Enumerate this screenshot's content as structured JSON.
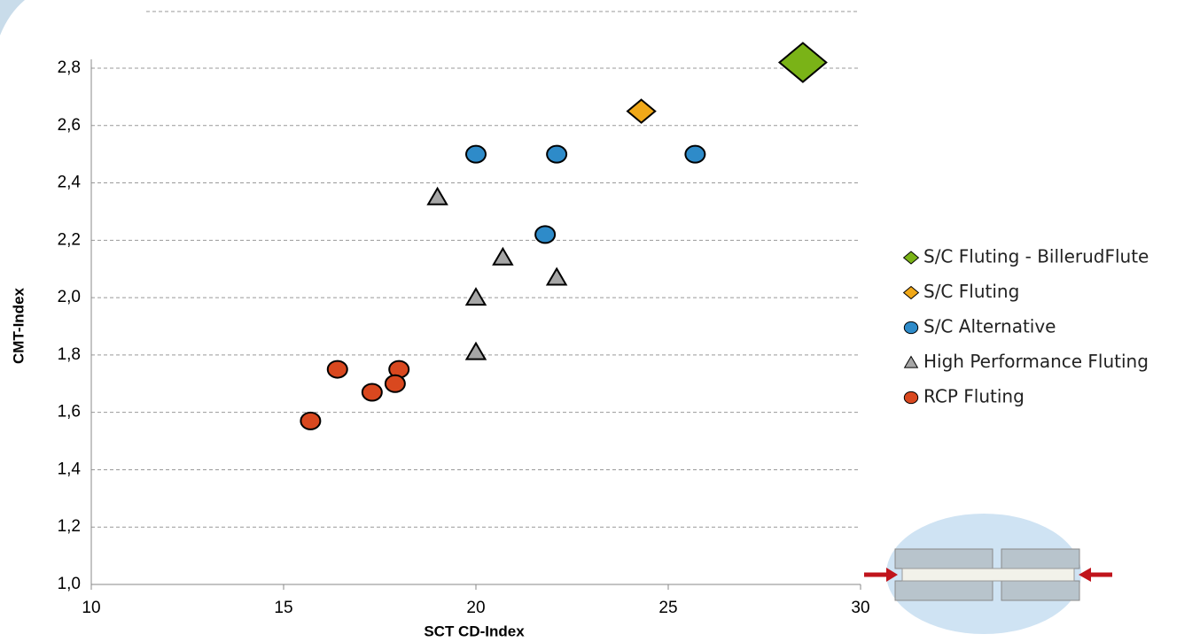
{
  "chart_data": {
    "type": "scatter",
    "x_label": "SCT CD-Index",
    "y_label": "CMT-Index",
    "xlim": [
      10,
      30
    ],
    "xticks": [
      10,
      15,
      20,
      25,
      30
    ],
    "ylim": [
      1.0,
      2.8
    ],
    "yticks": [
      {
        "value": 1.0,
        "label": "1,0"
      },
      {
        "value": 1.2,
        "label": "1,2"
      },
      {
        "value": 1.4,
        "label": "1,4"
      },
      {
        "value": 1.6,
        "label": "1,6"
      },
      {
        "value": 1.8,
        "label": "1,8"
      },
      {
        "value": 2.0,
        "label": "2,0"
      },
      {
        "value": 2.2,
        "label": "2,2"
      },
      {
        "value": 2.4,
        "label": "2,4"
      },
      {
        "value": 2.6,
        "label": "2,6"
      },
      {
        "value": 2.8,
        "label": "2,8"
      }
    ],
    "grid": true,
    "series": [
      {
        "name": "S/C Fluting - BillerudFlute",
        "color": "#7ab317",
        "marker": "diamond",
        "x": [
          28.5
        ],
        "values": [
          2.82
        ]
      },
      {
        "name": "S/C Fluting",
        "color": "#f0a818",
        "marker": "diamond",
        "x": [
          24.3
        ],
        "values": [
          2.65
        ]
      },
      {
        "name": "S/C Alternative",
        "color": "#2e8bc9",
        "marker": "circle",
        "x": [
          20.0,
          22.1,
          25.7,
          21.8
        ],
        "values": [
          2.5,
          2.5,
          2.5,
          2.22
        ]
      },
      {
        "name": "High Performance Fluting",
        "color": "#a6a6a6",
        "marker": "triangle",
        "x": [
          19.0,
          20.7,
          22.1,
          20.0,
          20.0
        ],
        "values": [
          2.35,
          2.14,
          2.07,
          2.0,
          1.81
        ]
      },
      {
        "name": "RCP Fluting",
        "color": "#d9481f",
        "marker": "circle",
        "x": [
          16.4,
          18.0,
          17.9,
          17.3,
          15.7
        ],
        "values": [
          1.75,
          1.75,
          1.7,
          1.67,
          1.57
        ]
      }
    ]
  }
}
